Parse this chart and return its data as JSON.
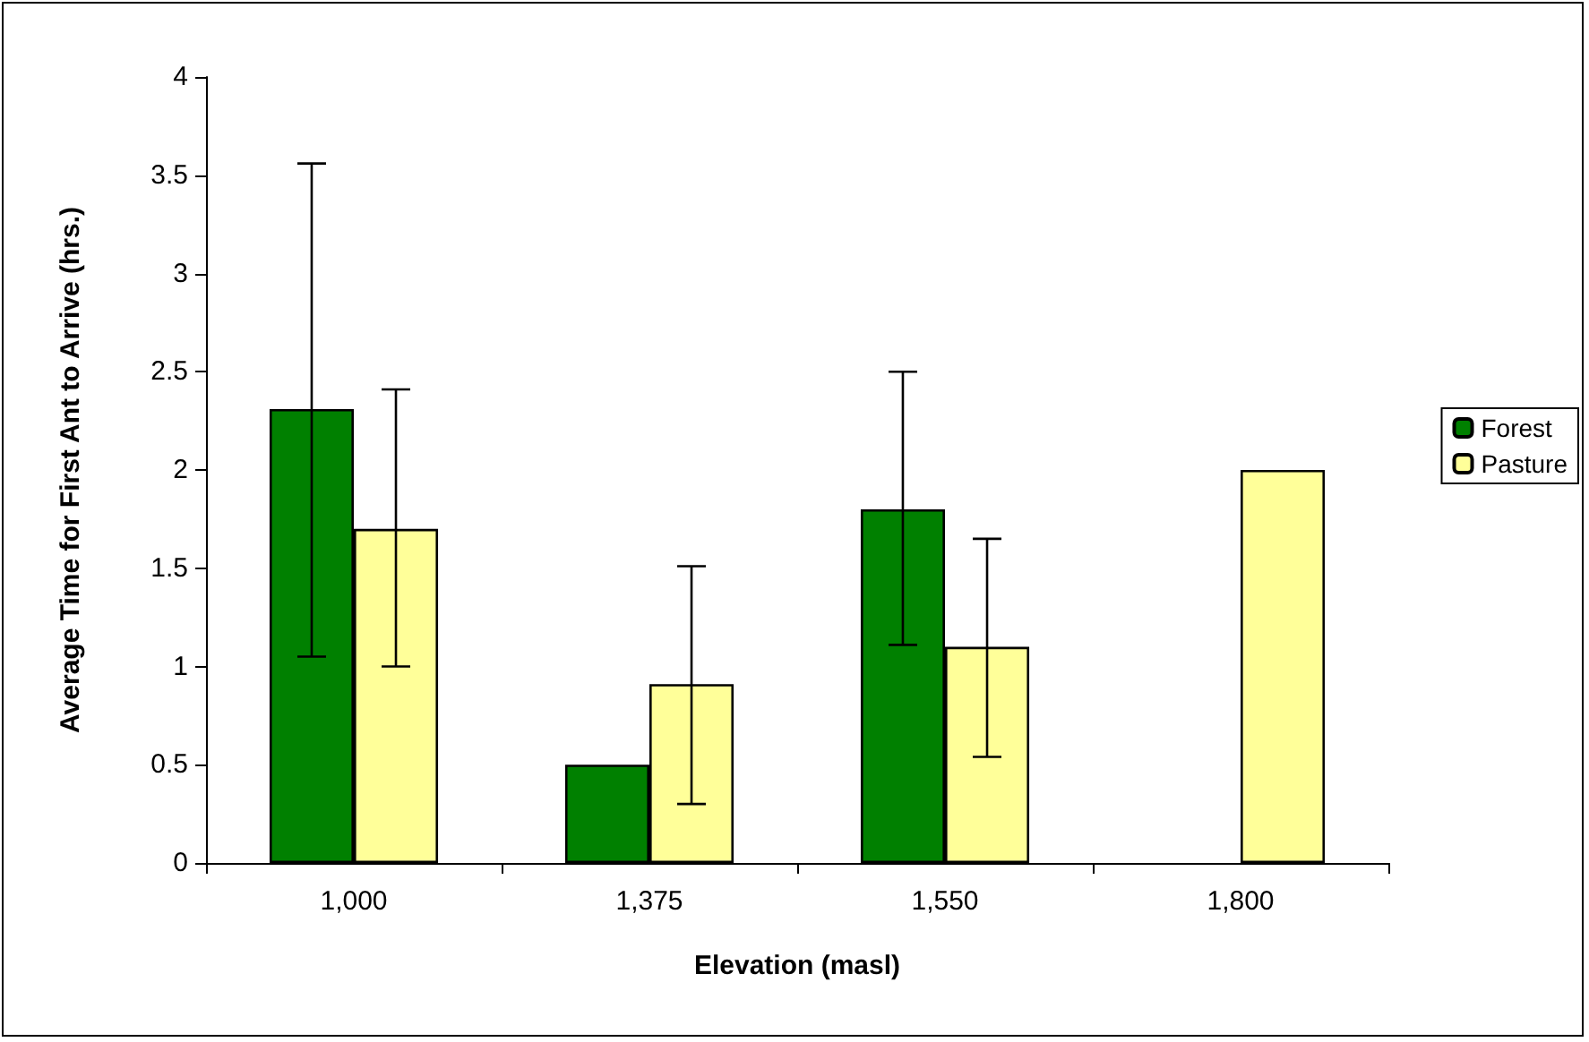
{
  "chart_data": {
    "type": "bar",
    "xlabel": "Elevation (masl)",
    "ylabel": "Average Time for First Ant to Arrive (hrs.)",
    "categories": [
      "1,000",
      "1,375",
      "1,550",
      "1,800"
    ],
    "series": [
      {
        "name": "Forest",
        "color": "#008000",
        "values": [
          2.31,
          0.5,
          1.8,
          null
        ],
        "errors": [
          [
            1.05,
            3.56
          ],
          null,
          [
            1.11,
            2.5
          ],
          null
        ]
      },
      {
        "name": "Pasture",
        "color": "#ffff99",
        "values": [
          1.7,
          0.91,
          1.1,
          2.0
        ],
        "errors": [
          [
            1.0,
            2.41
          ],
          [
            0.3,
            1.51
          ],
          [
            0.54,
            1.65
          ],
          null
        ]
      }
    ],
    "ylim": [
      0,
      4
    ],
    "yticks": [
      0,
      0.5,
      1,
      1.5,
      2,
      2.5,
      3,
      3.5,
      4
    ],
    "grid": false,
    "legend": "right"
  }
}
